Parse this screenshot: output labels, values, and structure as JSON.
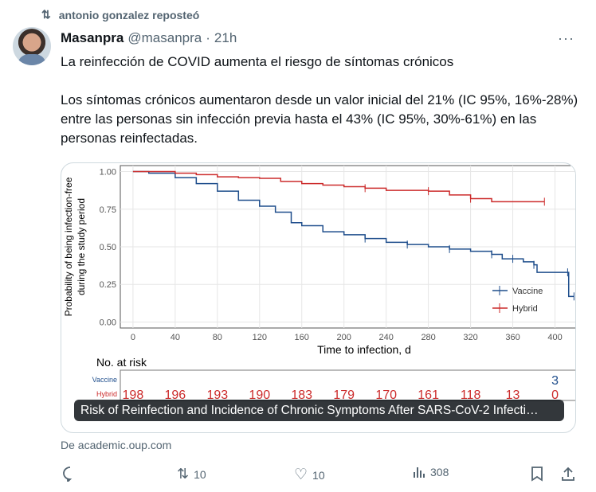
{
  "repost": {
    "label": "antonio gonzalez reposteó"
  },
  "tweet": {
    "name": "Masanpra",
    "handle": "@masanpra",
    "sep": "·",
    "time": "21h",
    "text": "La reinfección de COVID aumenta el riesgo de síntomas crónicos\n\nLos síntomas crónicos aumentaron desde un valor inicial del 21% (IC 95%, 16%-28%) entre las personas sin infección previa hasta el 43% (IC 95%, 30%-61%) en las personas reinfectadas.",
    "more": "···"
  },
  "card": {
    "caption": "Risk of Reinfection and Incidence of Chronic Symptoms After SARS-CoV-2 Infecti…",
    "source": "De academic.oup.com"
  },
  "actions": {
    "replies": "",
    "reposts": "10",
    "likes": "10",
    "views": "308"
  },
  "colors": {
    "vaccine": "#1f4e8c",
    "hybrid": "#cc2b2b"
  },
  "chart_data": {
    "type": "line",
    "title": "",
    "xlabel": "Time to infection, d",
    "ylabel": "Probability of being infection-free",
    "ylabel2": "during the study period",
    "xlim": [
      -12,
      420
    ],
    "ylim": [
      -0.04,
      1.04
    ],
    "xticks": [
      "0",
      "40",
      "80",
      "120",
      "160",
      "200",
      "240",
      "280",
      "320",
      "360",
      "400"
    ],
    "yticks": [
      "0.00",
      "0.25",
      "0.50",
      "0.75",
      "1.00"
    ],
    "legend": [
      "Vaccine",
      "Hybrid"
    ],
    "legend_position": "bottom-right",
    "series": [
      {
        "name": "Vaccine",
        "x": [
          0,
          15,
          40,
          60,
          80,
          100,
          120,
          135,
          150,
          160,
          180,
          200,
          220,
          240,
          260,
          280,
          300,
          320,
          340,
          350,
          360,
          370,
          380,
          383,
          412,
          413,
          418
        ],
        "y": [
          1,
          0.99,
          0.96,
          0.92,
          0.87,
          0.81,
          0.77,
          0.73,
          0.66,
          0.64,
          0.6,
          0.58,
          0.555,
          0.53,
          0.515,
          0.5,
          0.485,
          0.47,
          0.45,
          0.42,
          0.42,
          0.4,
          0.38,
          0.33,
          0.33,
          0.17,
          0.17
        ]
      },
      {
        "name": "Hybrid",
        "x": [
          0,
          40,
          60,
          80,
          100,
          120,
          140,
          160,
          180,
          200,
          220,
          240,
          280,
          300,
          320,
          340,
          390
        ],
        "y": [
          1,
          0.99,
          0.98,
          0.965,
          0.96,
          0.955,
          0.935,
          0.92,
          0.91,
          0.9,
          0.89,
          0.875,
          0.87,
          0.845,
          0.82,
          0.8,
          0.8
        ]
      }
    ],
    "risk_table": {
      "title": "No. at risk",
      "rows": [
        {
          "name": "Vaccine",
          "values": [
            "",
            "",
            "",
            "",
            "",
            "",
            "",
            "",
            "",
            "",
            "3"
          ]
        },
        {
          "name": "Hybrid",
          "values": [
            "198",
            "196",
            "193",
            "190",
            "183",
            "179",
            "170",
            "161",
            "118",
            "13",
            "0"
          ]
        }
      ]
    }
  }
}
